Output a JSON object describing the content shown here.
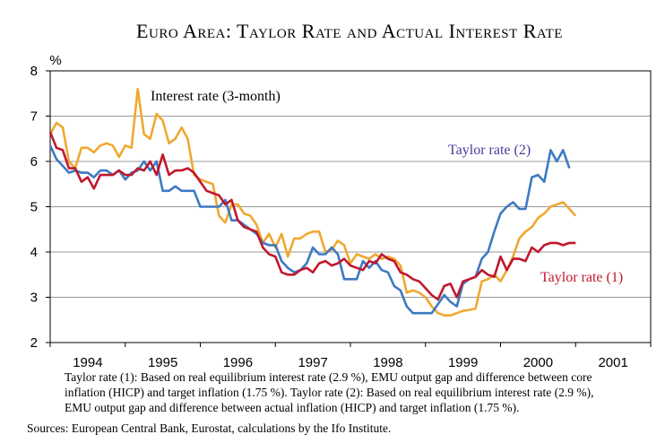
{
  "chart_data": {
    "type": "line",
    "title": "Euro Area: Taylor Rate and Actual Interest Rate",
    "y_unit": "%",
    "ylim": [
      2,
      8
    ],
    "yticks": [
      2,
      3,
      4,
      5,
      6,
      7,
      8
    ],
    "xlim": [
      1994,
      2002
    ],
    "xticks": [
      1994,
      1995,
      1996,
      1997,
      1998,
      1999,
      2000,
      2001,
      2002
    ],
    "year_labels": [
      "1994",
      "1995",
      "1996",
      "1997",
      "1998",
      "1999",
      "2000",
      "2001"
    ],
    "grid": true,
    "x": [
      1994,
      1994.083,
      1994.167,
      1994.25,
      1994.333,
      1994.417,
      1994.5,
      1994.583,
      1994.667,
      1994.75,
      1994.833,
      1994.917,
      1995,
      1995.083,
      1995.167,
      1995.25,
      1995.333,
      1995.417,
      1995.5,
      1995.583,
      1995.667,
      1995.75,
      1995.833,
      1995.917,
      1996,
      1996.083,
      1996.167,
      1996.25,
      1996.333,
      1996.417,
      1996.5,
      1996.583,
      1996.667,
      1996.75,
      1996.833,
      1996.917,
      1997,
      1997.083,
      1997.167,
      1997.25,
      1997.333,
      1997.417,
      1997.5,
      1997.583,
      1997.667,
      1997.75,
      1997.833,
      1997.917,
      1998,
      1998.083,
      1998.167,
      1998.25,
      1998.333,
      1998.417,
      1998.5,
      1998.583,
      1998.667,
      1998.75,
      1998.833,
      1998.917,
      1999,
      1999.083,
      1999.167,
      1999.25,
      1999.333,
      1999.417,
      1999.5,
      1999.583,
      1999.667,
      1999.75,
      1999.833,
      1999.917,
      2000,
      2000.083,
      2000.167,
      2000.25,
      2000.333,
      2000.417,
      2000.5,
      2000.583,
      2000.667,
      2000.75,
      2000.833,
      2000.917,
      2001
    ],
    "series": [
      {
        "name": "Interest rate (3-month)",
        "color": "#f0a830",
        "values": [
          6.6,
          6.85,
          6.75,
          6.0,
          5.85,
          6.3,
          6.3,
          6.2,
          6.35,
          6.4,
          6.35,
          6.1,
          6.35,
          6.3,
          7.6,
          6.6,
          6.5,
          7.05,
          6.9,
          6.4,
          6.5,
          6.75,
          6.5,
          5.7,
          5.6,
          5.55,
          5.5,
          4.8,
          4.65,
          5.05,
          5.05,
          4.85,
          4.8,
          4.6,
          4.2,
          4.4,
          4.1,
          4.4,
          3.9,
          4.3,
          4.3,
          4.4,
          4.45,
          4.45,
          4.0,
          4.05,
          4.25,
          4.15,
          3.75,
          3.95,
          3.9,
          3.85,
          3.95,
          3.85,
          3.9,
          3.85,
          3.7,
          3.1,
          3.15,
          3.1,
          3.0,
          2.8,
          2.65,
          2.6,
          2.6,
          2.65,
          2.7,
          2.72,
          2.75,
          3.35,
          3.4,
          3.5,
          3.35,
          3.6,
          3.9,
          4.3,
          4.45,
          4.55,
          4.75,
          4.85,
          5.0,
          5.05,
          5.1,
          4.95,
          4.8
        ]
      },
      {
        "name": "Taylor rate (2)",
        "color": "#3d7ac2",
        "values": [
          6.35,
          6.05,
          5.9,
          5.75,
          5.8,
          5.75,
          5.75,
          5.65,
          5.8,
          5.8,
          5.7,
          5.8,
          5.6,
          5.75,
          5.8,
          6.0,
          5.8,
          6.0,
          5.35,
          5.35,
          5.45,
          5.35,
          5.35,
          5.35,
          5.0,
          5.0,
          5.0,
          5.0,
          5.15,
          4.7,
          4.7,
          4.6,
          4.5,
          4.4,
          4.2,
          4.15,
          4.15,
          3.8,
          3.65,
          3.55,
          3.6,
          3.75,
          4.1,
          3.95,
          3.95,
          4.1,
          3.95,
          3.4,
          3.4,
          3.4,
          3.8,
          3.65,
          3.8,
          3.6,
          3.55,
          3.25,
          3.15,
          2.8,
          2.65,
          2.65,
          2.65,
          2.65,
          2.85,
          3.05,
          2.9,
          2.8,
          3.3,
          3.4,
          3.45,
          3.85,
          4.0,
          4.45,
          4.85,
          5.0,
          5.1,
          4.95,
          4.95,
          5.65,
          5.7,
          5.55,
          6.25,
          6.0,
          6.25,
          5.85,
          null
        ]
      },
      {
        "name": "Taylor rate (1)",
        "color": "#c0182e",
        "values": [
          6.65,
          6.3,
          6.25,
          5.85,
          5.85,
          5.55,
          5.65,
          5.4,
          5.7,
          5.7,
          5.7,
          5.8,
          5.7,
          5.7,
          5.85,
          5.8,
          6.0,
          5.7,
          6.15,
          5.7,
          5.8,
          5.8,
          5.85,
          5.75,
          5.55,
          5.35,
          5.3,
          5.25,
          5.05,
          5.15,
          4.7,
          4.55,
          4.5,
          4.45,
          4.1,
          3.95,
          3.9,
          3.55,
          3.5,
          3.5,
          3.6,
          3.65,
          3.55,
          3.75,
          3.8,
          3.7,
          3.75,
          3.85,
          3.7,
          3.65,
          3.6,
          3.8,
          3.75,
          3.95,
          3.85,
          3.8,
          3.55,
          3.5,
          3.4,
          3.35,
          3.2,
          3.05,
          2.95,
          3.25,
          3.3,
          3.0,
          3.35,
          3.4,
          3.45,
          3.6,
          3.5,
          3.45,
          3.9,
          3.6,
          3.85,
          3.85,
          3.8,
          4.1,
          4.0,
          4.15,
          4.2,
          4.2,
          4.15,
          4.2,
          4.2
        ]
      }
    ],
    "footnote": [
      "Taylor rate (1): Based on real equilibrium interest rate (2.9 %), EMU output gap and difference between core",
      "inflation (HICP) and target inflation (1.75 %). Taylor rate (2): Based on real equilibrium interest rate (2.9 %),",
      "EMU output gap and difference between actual inflation (HICP) and target inflation (1.75 %)."
    ],
    "source": "Sources: European Central Bank, Eurostat, calculations by the Ifo Institute."
  }
}
